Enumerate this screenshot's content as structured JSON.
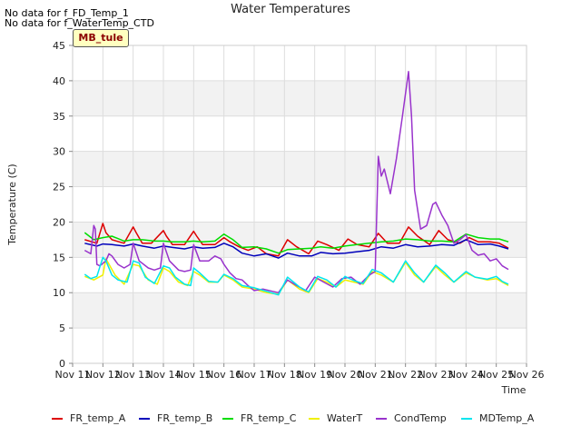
{
  "no_data_notes": [
    "No data for f_FD_Temp_1",
    "No data for f_WaterTemp_CTD"
  ],
  "site_badge": "MB_tule",
  "chart_data": {
    "type": "line",
    "title": "Water Temperatures",
    "xlabel": "Time",
    "ylabel": "Temperature (C)",
    "ylim": [
      0,
      45
    ],
    "yticks": [
      0,
      5,
      10,
      15,
      20,
      25,
      30,
      35,
      40,
      45
    ],
    "xlim": [
      11,
      26
    ],
    "xticks": [
      11,
      12,
      13,
      14,
      15,
      16,
      17,
      18,
      19,
      20,
      21,
      22,
      23,
      24,
      25,
      26
    ],
    "xtick_labels": [
      "Nov 11",
      "Nov 12",
      "Nov 13",
      "Nov 14",
      "Nov 15",
      "Nov 16",
      "Nov 17",
      "Nov 18",
      "Nov 19",
      "Nov 20",
      "Nov 21",
      "Nov 22",
      "Nov 23",
      "Nov 24",
      "Nov 25",
      "Nov 26"
    ],
    "grid": true,
    "band_fill": "#f2f2f2",
    "legend_position": "bottom",
    "series": [
      {
        "name": "FR_temp_A",
        "color": "#dd0000",
        "x": [
          11.4,
          11.8,
          12.0,
          12.1,
          12.3,
          12.7,
          13.0,
          13.1,
          13.3,
          13.6,
          14.0,
          14.1,
          14.3,
          14.7,
          15.0,
          15.1,
          15.3,
          15.7,
          16.0,
          16.2,
          16.5,
          16.8,
          17.1,
          17.4,
          17.8,
          18.1,
          18.4,
          18.8,
          19.1,
          19.4,
          19.8,
          20.1,
          20.4,
          20.8,
          21.1,
          21.4,
          21.8,
          22.1,
          22.4,
          22.8,
          23.1,
          23.4,
          23.8,
          24.1,
          24.4,
          24.8,
          25.1,
          25.4
        ],
        "y": [
          17.5,
          17.0,
          19.8,
          18.5,
          17.5,
          17.0,
          19.3,
          18.5,
          17.0,
          17.0,
          18.8,
          18.0,
          16.8,
          16.8,
          18.7,
          18.0,
          16.8,
          16.8,
          17.8,
          17.2,
          16.5,
          16.0,
          16.5,
          15.5,
          15.2,
          17.5,
          16.5,
          15.5,
          17.3,
          16.8,
          16.0,
          17.6,
          16.8,
          16.5,
          18.4,
          17.0,
          17.0,
          19.3,
          18.0,
          16.8,
          18.8,
          17.5,
          17.0,
          17.8,
          17.2,
          17.2,
          17.0,
          16.3
        ]
      },
      {
        "name": "FR_temp_B",
        "color": "#0000bb",
        "x": [
          11.4,
          11.8,
          12.0,
          12.3,
          12.7,
          13.0,
          13.3,
          13.7,
          14.0,
          14.3,
          14.7,
          15.0,
          15.3,
          15.7,
          16.0,
          16.3,
          16.6,
          17.0,
          17.4,
          17.8,
          18.1,
          18.5,
          18.9,
          19.2,
          19.6,
          20.0,
          20.4,
          20.8,
          21.2,
          21.6,
          22.0,
          22.4,
          22.8,
          23.2,
          23.6,
          24.0,
          24.4,
          24.8,
          25.1,
          25.4
        ],
        "y": [
          17.0,
          16.6,
          16.9,
          16.8,
          16.6,
          16.9,
          16.6,
          16.3,
          16.6,
          16.4,
          16.2,
          16.5,
          16.3,
          16.4,
          17.0,
          16.5,
          15.6,
          15.2,
          15.5,
          14.9,
          15.6,
          15.2,
          15.2,
          15.7,
          15.5,
          15.6,
          15.8,
          16.0,
          16.5,
          16.3,
          16.8,
          16.5,
          16.6,
          16.8,
          16.7,
          17.5,
          16.8,
          16.9,
          16.6,
          16.2
        ]
      },
      {
        "name": "FR_temp_C",
        "color": "#00dd00",
        "x": [
          11.4,
          11.7,
          12.0,
          12.3,
          12.7,
          13.0,
          13.3,
          13.7,
          14.0,
          14.3,
          14.7,
          15.0,
          15.3,
          15.7,
          16.0,
          16.3,
          16.6,
          17.0,
          17.4,
          17.8,
          18.1,
          18.5,
          18.9,
          19.2,
          19.6,
          20.0,
          20.4,
          20.8,
          21.2,
          21.6,
          22.0,
          22.4,
          22.8,
          23.2,
          23.6,
          24.0,
          24.4,
          24.8,
          25.1,
          25.4
        ],
        "y": [
          18.5,
          17.5,
          17.8,
          18.0,
          17.3,
          17.5,
          17.5,
          17.3,
          17.3,
          17.2,
          17.2,
          17.3,
          17.2,
          17.3,
          18.3,
          17.5,
          16.4,
          16.5,
          16.2,
          15.6,
          16.1,
          16.2,
          16.3,
          16.5,
          16.3,
          16.6,
          16.8,
          17.0,
          17.2,
          17.3,
          17.6,
          17.5,
          17.3,
          17.3,
          17.2,
          18.3,
          17.8,
          17.6,
          17.6,
          17.2
        ]
      },
      {
        "name": "WaterT",
        "color": "#f0f000",
        "x": [
          11.4,
          11.7,
          12.0,
          12.1,
          12.4,
          12.7,
          13.0,
          13.2,
          13.5,
          13.8,
          14.0,
          14.2,
          14.5,
          14.8,
          15.0,
          15.2,
          15.5,
          15.8,
          16.0,
          16.3,
          16.6,
          17.0,
          17.4,
          17.8,
          18.1,
          18.5,
          18.8,
          19.1,
          19.4,
          19.7,
          20.0,
          20.3,
          20.6,
          20.9,
          21.2,
          21.6,
          22.0,
          22.3,
          22.6,
          23.0,
          23.3,
          23.6,
          24.0,
          24.3,
          24.7,
          25.0,
          25.2,
          25.4
        ],
        "y": [
          12.3,
          11.8,
          12.5,
          14.8,
          12.5,
          11.2,
          14.0,
          13.8,
          11.8,
          11.2,
          13.5,
          13.0,
          11.5,
          11.0,
          13.0,
          12.5,
          11.5,
          11.5,
          12.5,
          11.8,
          10.8,
          10.5,
          10.0,
          9.8,
          11.8,
          10.5,
          10.0,
          12.0,
          11.5,
          10.8,
          11.8,
          11.5,
          11.2,
          13.0,
          12.5,
          11.5,
          14.3,
          12.5,
          11.5,
          13.7,
          12.5,
          11.5,
          12.8,
          12.2,
          11.8,
          12.0,
          11.5,
          11.0
        ]
      },
      {
        "name": "CondTemp",
        "color": "#9933cc",
        "x": [
          11.4,
          11.6,
          11.7,
          11.75,
          11.8,
          11.9,
          12.1,
          12.2,
          12.3,
          12.5,
          12.7,
          12.9,
          13.0,
          13.2,
          13.5,
          13.7,
          13.9,
          14.0,
          14.2,
          14.5,
          14.7,
          14.9,
          15.0,
          15.2,
          15.5,
          15.7,
          15.9,
          16.0,
          16.2,
          16.4,
          16.6,
          16.8,
          17.0,
          17.3,
          17.6,
          17.8,
          18.1,
          18.4,
          18.7,
          19.0,
          19.3,
          19.6,
          19.9,
          20.2,
          20.5,
          20.8,
          21.0,
          21.1,
          21.2,
          21.3,
          21.5,
          21.7,
          21.9,
          22.1,
          22.2,
          22.3,
          22.5,
          22.7,
          22.9,
          23.0,
          23.2,
          23.4,
          23.6,
          23.8,
          24.0,
          24.2,
          24.4,
          24.6,
          24.8,
          25.0,
          25.2,
          25.4
        ],
        "y": [
          16.0,
          15.5,
          19.5,
          19.0,
          14.0,
          13.8,
          14.5,
          15.5,
          15.2,
          14.0,
          13.5,
          14.0,
          17.0,
          14.5,
          13.5,
          13.2,
          13.5,
          17.0,
          14.5,
          13.2,
          13.0,
          13.2,
          16.8,
          14.5,
          14.5,
          15.2,
          14.8,
          14.0,
          12.8,
          12.0,
          11.8,
          11.0,
          10.3,
          10.5,
          10.2,
          10.0,
          11.8,
          11.0,
          10.3,
          12.2,
          11.5,
          10.8,
          12.0,
          12.2,
          11.2,
          12.5,
          13.0,
          29.3,
          26.5,
          27.5,
          24.0,
          29.0,
          35.0,
          41.3,
          35.0,
          24.5,
          19.0,
          19.5,
          22.5,
          22.8,
          21.0,
          19.5,
          17.0,
          17.5,
          18.2,
          16.0,
          15.3,
          15.5,
          14.5,
          14.8,
          13.8,
          13.3
        ]
      },
      {
        "name": "MDTemp_A",
        "color": "#00e5ee",
        "x": [
          11.4,
          11.6,
          11.8,
          12.0,
          12.1,
          12.3,
          12.5,
          12.8,
          13.0,
          13.2,
          13.4,
          13.7,
          14.0,
          14.2,
          14.4,
          14.7,
          14.9,
          15.0,
          15.2,
          15.5,
          15.8,
          16.0,
          16.3,
          16.6,
          17.0,
          17.4,
          17.8,
          18.1,
          18.5,
          18.8,
          19.1,
          19.4,
          19.7,
          20.0,
          20.3,
          20.6,
          20.9,
          21.2,
          21.6,
          22.0,
          22.3,
          22.6,
          23.0,
          23.3,
          23.6,
          24.0,
          24.3,
          24.7,
          25.0,
          25.2,
          25.4
        ],
        "y": [
          12.6,
          12.0,
          12.3,
          15.0,
          14.5,
          12.5,
          11.8,
          11.5,
          14.5,
          14.2,
          12.2,
          11.3,
          13.8,
          13.5,
          12.2,
          11.2,
          11.0,
          13.5,
          12.8,
          11.6,
          11.5,
          12.6,
          12.0,
          11.0,
          10.7,
          10.2,
          9.7,
          12.2,
          10.8,
          10.1,
          12.3,
          11.8,
          10.8,
          12.3,
          11.7,
          11.3,
          13.3,
          12.8,
          11.5,
          14.5,
          12.8,
          11.5,
          13.9,
          12.8,
          11.5,
          13.0,
          12.2,
          11.9,
          12.3,
          11.6,
          11.2
        ]
      }
    ]
  }
}
